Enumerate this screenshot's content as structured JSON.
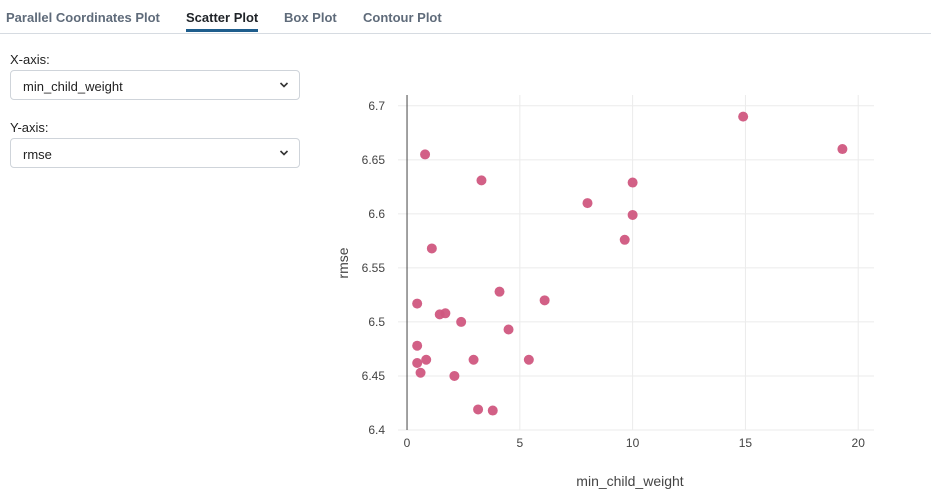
{
  "tabs": [
    {
      "label": "Parallel Coordinates Plot",
      "active": false
    },
    {
      "label": "Scatter Plot",
      "active": true
    },
    {
      "label": "Box Plot",
      "active": false
    },
    {
      "label": "Contour Plot",
      "active": false
    }
  ],
  "controls": {
    "x_label": "X-axis:",
    "x_value": "min_child_weight",
    "y_label": "Y-axis:",
    "y_value": "rmse"
  },
  "icons": {
    "select_arrow": "chevron-down-icon"
  },
  "colors": {
    "accent": "#1e5d8c",
    "point": "#d0577f"
  },
  "chart_data": {
    "type": "scatter",
    "title": "",
    "xlabel": "min_child_weight",
    "ylabel": "rmse",
    "xlim": [
      -0.4,
      20.7
    ],
    "ylim": [
      6.4,
      6.71
    ],
    "x_ticks": [
      "0",
      "5",
      "10",
      "15",
      "20"
    ],
    "x_tick_values": [
      0,
      5,
      10,
      15,
      20
    ],
    "y_ticks": [
      "6.4",
      "6.45",
      "6.5",
      "6.55",
      "6.6",
      "6.65",
      "6.7"
    ],
    "y_tick_values": [
      6.4,
      6.45,
      6.5,
      6.55,
      6.6,
      6.65,
      6.7
    ],
    "grid": true,
    "points": [
      {
        "x": 14.9,
        "y": 6.69
      },
      {
        "x": 19.3,
        "y": 6.66
      },
      {
        "x": 0.8,
        "y": 6.655
      },
      {
        "x": 3.3,
        "y": 6.631
      },
      {
        "x": 10.0,
        "y": 6.629
      },
      {
        "x": 8.0,
        "y": 6.61
      },
      {
        "x": 10.0,
        "y": 6.599
      },
      {
        "x": 9.65,
        "y": 6.576
      },
      {
        "x": 1.1,
        "y": 6.568
      },
      {
        "x": 4.1,
        "y": 6.528
      },
      {
        "x": 6.1,
        "y": 6.52
      },
      {
        "x": 0.45,
        "y": 6.517
      },
      {
        "x": 1.45,
        "y": 6.507
      },
      {
        "x": 1.7,
        "y": 6.508
      },
      {
        "x": 2.4,
        "y": 6.5
      },
      {
        "x": 4.5,
        "y": 6.493
      },
      {
        "x": 0.45,
        "y": 6.478
      },
      {
        "x": 0.45,
        "y": 6.462
      },
      {
        "x": 0.85,
        "y": 6.465
      },
      {
        "x": 2.95,
        "y": 6.465
      },
      {
        "x": 5.4,
        "y": 6.465
      },
      {
        "x": 0.6,
        "y": 6.453
      },
      {
        "x": 2.1,
        "y": 6.45
      },
      {
        "x": 3.15,
        "y": 6.419
      },
      {
        "x": 3.8,
        "y": 6.418
      }
    ]
  }
}
